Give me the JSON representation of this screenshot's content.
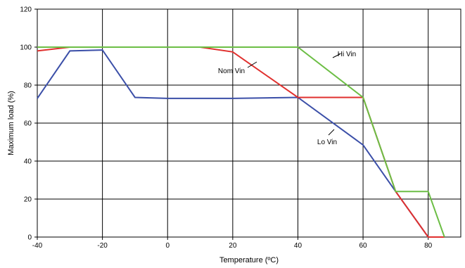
{
  "chart_data": {
    "type": "line",
    "xlabel": "Temperature (ºC)",
    "ylabel": "Maximum load (%)",
    "xlim": [
      -40,
      90
    ],
    "ylim": [
      0,
      120
    ],
    "x_ticks": [
      -40,
      -20,
      0,
      20,
      40,
      60,
      80
    ],
    "y_ticks": [
      0,
      20,
      40,
      60,
      80,
      100,
      120
    ],
    "grid": true,
    "series": [
      {
        "name": "Lo Vin",
        "color": "#3b4fa8",
        "points": [
          [
            -40,
            73
          ],
          [
            -30,
            98
          ],
          [
            -20,
            98.5
          ],
          [
            -10,
            73.5
          ],
          [
            0,
            73
          ],
          [
            20,
            73
          ],
          [
            40,
            73.5
          ],
          [
            60,
            48.5
          ],
          [
            70,
            24
          ],
          [
            80,
            0
          ],
          [
            85,
            0
          ]
        ]
      },
      {
        "name": "Nom Vin",
        "color": "#e0302e",
        "points": [
          [
            -40,
            98
          ],
          [
            -30,
            100
          ],
          [
            -20,
            100
          ],
          [
            10,
            100
          ],
          [
            20,
            97.5
          ],
          [
            40,
            73.5
          ],
          [
            60,
            73.5
          ],
          [
            70,
            24
          ],
          [
            80,
            0
          ],
          [
            85,
            0
          ]
        ]
      },
      {
        "name": "Hi Vin",
        "color": "#6cbe45",
        "points": [
          [
            -40,
            100
          ],
          [
            40,
            100
          ],
          [
            60,
            73.5
          ],
          [
            70,
            24
          ],
          [
            80,
            24
          ],
          [
            85,
            0
          ]
        ]
      }
    ]
  }
}
